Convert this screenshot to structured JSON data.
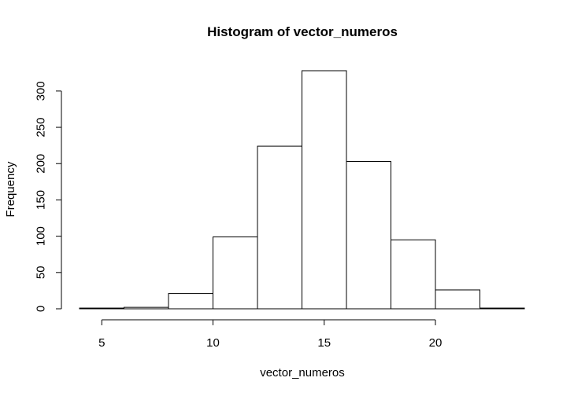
{
  "chart_data": {
    "type": "bar",
    "title": "Histogram of vector_numeros",
    "xlabel": "vector_numeros",
    "ylabel": "Frequency",
    "bin_edges": [
      4,
      6,
      8,
      10,
      12,
      14,
      16,
      18,
      20,
      22,
      24
    ],
    "values": [
      1,
      2,
      21,
      99,
      224,
      328,
      203,
      95,
      26,
      1
    ],
    "xlim": [
      4,
      24
    ],
    "ylim": [
      0,
      328
    ],
    "x_ticks": [
      5,
      10,
      15,
      20
    ],
    "y_ticks": [
      0,
      50,
      100,
      150,
      200,
      250,
      300
    ],
    "grid": false
  }
}
